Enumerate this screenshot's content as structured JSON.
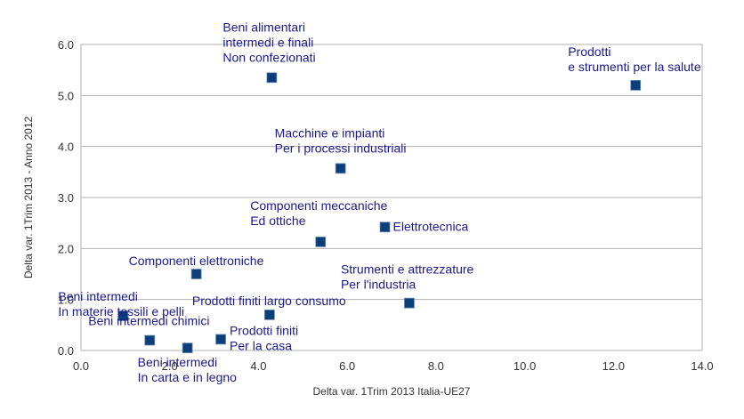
{
  "chart_data": {
    "type": "scatter",
    "xlabel": "Delta var. 1Trim 2013 Italia-UE27",
    "ylabel": "Delta var. 1Trim 2013 - Anno 2012",
    "xlim": [
      0,
      14
    ],
    "ylim": [
      0,
      6
    ],
    "x_ticks": [
      "0.0",
      "2.0",
      "4.0",
      "6.0",
      "8.0",
      "10.0",
      "12.0",
      "14.0"
    ],
    "y_ticks": [
      "0.0",
      "1.0",
      "2.0",
      "3.0",
      "4.0",
      "5.0",
      "6.0"
    ],
    "grid": "horizontal",
    "marker_color": "#0b3e7a",
    "label_color": "#1a1a8c",
    "points": [
      {
        "x": 4.3,
        "y": 5.35,
        "label": [
          "Beni alimentari",
          "intermedi e finali",
          "Non confezionati"
        ]
      },
      {
        "x": 12.5,
        "y": 5.2,
        "label": [
          "Prodotti",
          "e strumenti per la salute"
        ]
      },
      {
        "x": 5.85,
        "y": 3.57,
        "label": [
          "Macchine e impianti",
          "Per i processi industriali"
        ]
      },
      {
        "x": 5.4,
        "y": 2.13,
        "label": [
          "Componenti meccaniche",
          "Ed ottiche"
        ]
      },
      {
        "x": 6.85,
        "y": 2.42,
        "label": [
          "Elettrotecnica"
        ]
      },
      {
        "x": 2.6,
        "y": 1.5,
        "label": [
          "Componenti elettroniche"
        ]
      },
      {
        "x": 7.4,
        "y": 0.93,
        "label": [
          "Strumenti e attrezzature",
          "Per l'industria"
        ]
      },
      {
        "x": 0.95,
        "y": 0.68,
        "label": [
          "Beni intermedi",
          "In materie tessili e pelli"
        ]
      },
      {
        "x": 4.25,
        "y": 0.7,
        "label": [
          "Prodotti finiti largo consumo"
        ]
      },
      {
        "x": 1.55,
        "y": 0.2,
        "label": [
          "Beni intermedi chimici"
        ]
      },
      {
        "x": 2.4,
        "y": 0.05,
        "label": [
          "Beni intermedi",
          "In carta e in legno"
        ]
      },
      {
        "x": 3.15,
        "y": 0.22,
        "label": [
          "Prodotti finiti",
          "Per la casa"
        ]
      }
    ]
  }
}
